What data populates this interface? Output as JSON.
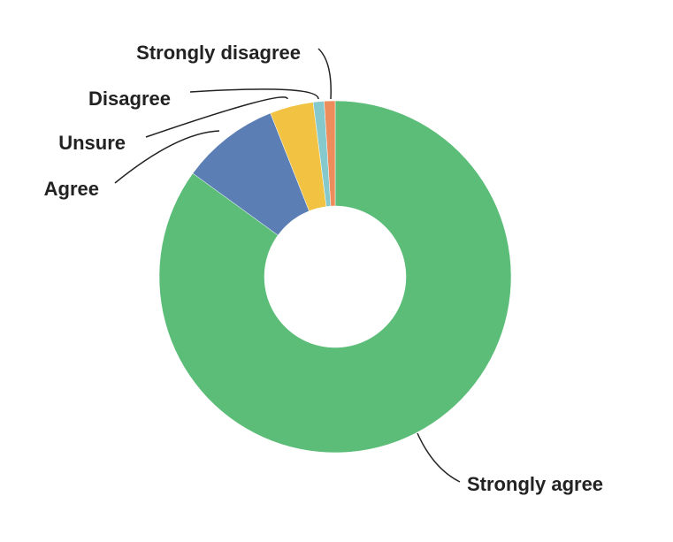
{
  "chart_data": {
    "type": "donut",
    "categories": [
      "Strongly agree",
      "Agree",
      "Unsure",
      "Disagree",
      "Strongly disagree"
    ],
    "values": [
      85,
      9,
      4,
      1,
      1
    ],
    "colors": [
      "#5bbd77",
      "#5b7fb4",
      "#f2c242",
      "#86c9cc",
      "#ee8d5c"
    ]
  }
}
